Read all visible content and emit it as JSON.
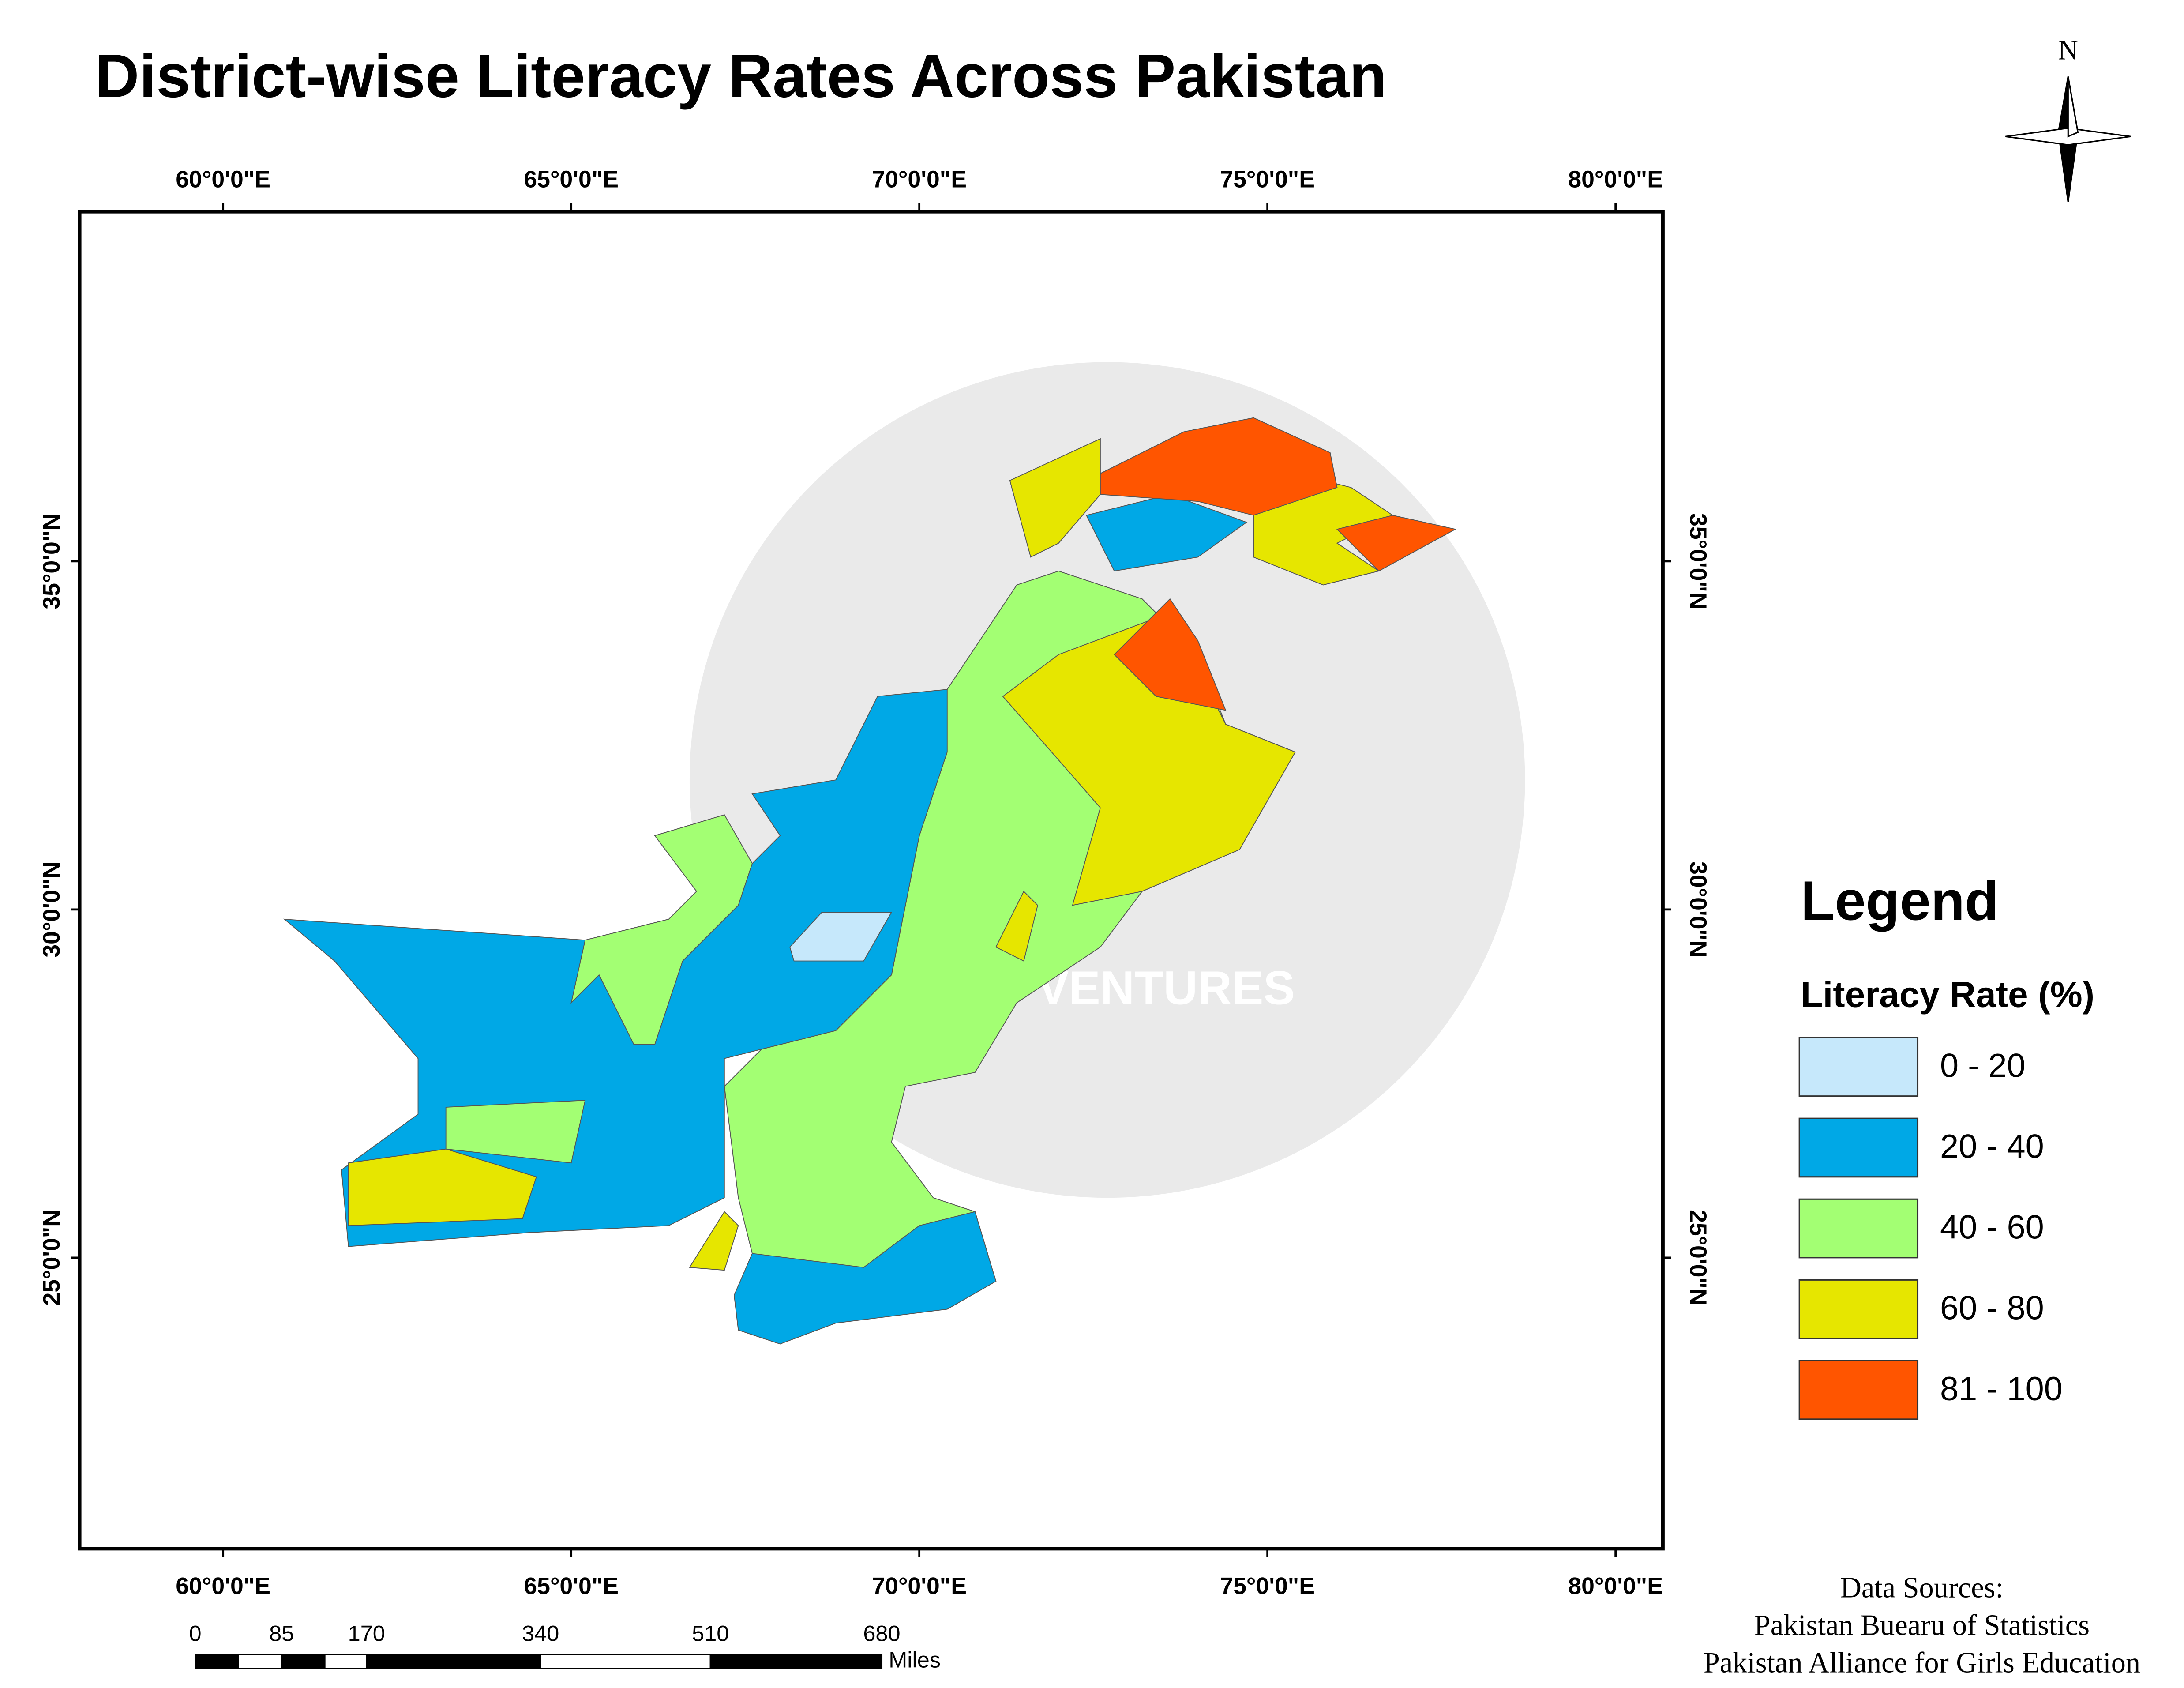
{
  "title": "District-wise Literacy Rates Across Pakistan",
  "north_label": "N",
  "watermark": "MAP VENTURES",
  "map": {
    "longitude_labels": [
      "60°0'0\"E",
      "65°0'0\"E",
      "70°0'0\"E",
      "75°0'0\"E",
      "80°0'0\"E"
    ],
    "latitude_labels": [
      "35°0'0\"N",
      "30°0'0\"N",
      "25°0'0\"N"
    ]
  },
  "legend": {
    "title": "Legend",
    "subtitle": "Literacy Rate (%)",
    "items": [
      {
        "label": "0 - 20",
        "color": "#c6e8fb"
      },
      {
        "label": "20 - 40",
        "color": "#00a8e6"
      },
      {
        "label": "40 - 60",
        "color": "#a3ff73"
      },
      {
        "label": "60 - 80",
        "color": "#e6e600"
      },
      {
        "label": "81 - 100",
        "color": "#ff5500"
      }
    ]
  },
  "scale_bar": {
    "ticks": [
      "0",
      "85",
      "170",
      "340",
      "510",
      "680"
    ],
    "unit": "Miles"
  },
  "data_sources": [
    "Data Sources:",
    "Pakistan Buearu of Statistics",
    "Pakistan Alliance for Girls Education"
  ]
}
